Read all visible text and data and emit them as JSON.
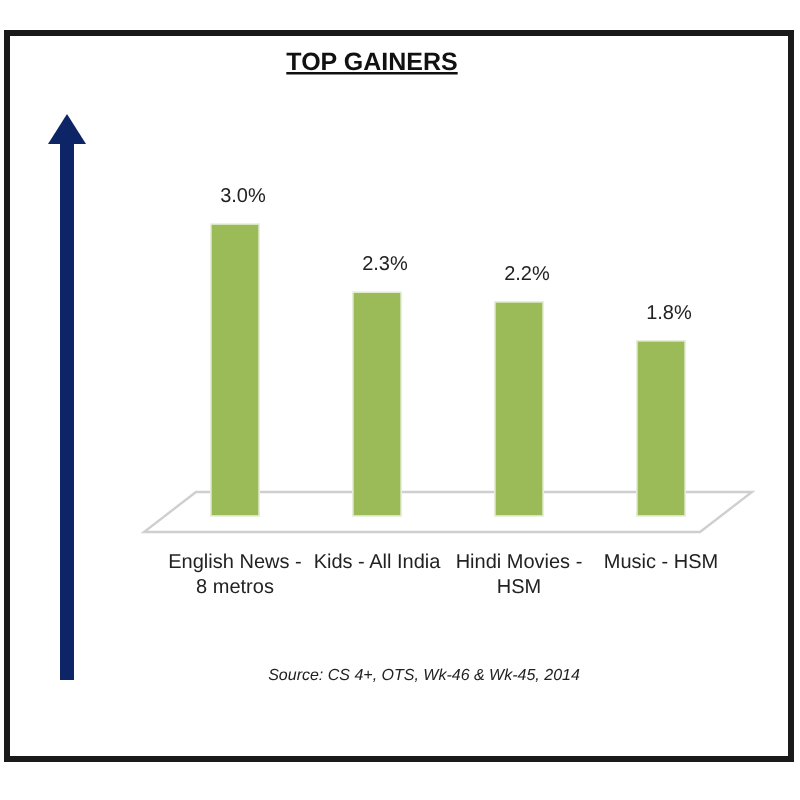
{
  "chart_data": {
    "type": "bar",
    "title": "TOP GAINERS",
    "categories": [
      "English News - 8 metros",
      "Kids - All India",
      "Hindi Movies - HSM",
      "Music - HSM"
    ],
    "values": [
      3.0,
      2.3,
      2.2,
      1.8
    ],
    "color": "#9bbb59",
    "value_labels": [
      "3.0%",
      "2.3%",
      "2.2%",
      "1.8%"
    ],
    "annotations": [
      "Source: CS 4+, OTS, Wk-46 & Wk-45, 2014"
    ]
  }
}
